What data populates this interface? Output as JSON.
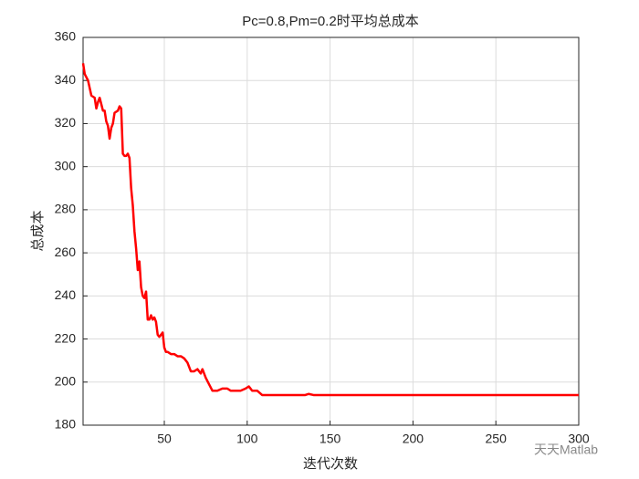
{
  "chart_data": {
    "type": "line",
    "title": "Pc=0.8,Pm=0.2时平均总成本",
    "x_label": "迭代次数",
    "y_label": "总成本",
    "x": [
      1,
      2,
      4,
      6,
      8,
      9,
      10,
      11,
      12,
      13,
      14,
      15,
      16,
      17,
      18,
      19,
      20,
      22,
      23,
      24,
      25,
      26,
      27,
      28,
      29,
      30,
      31,
      32,
      33,
      34,
      35,
      36,
      37,
      38,
      39,
      40,
      41,
      42,
      43,
      44,
      45,
      46,
      47,
      48,
      49,
      50,
      51,
      52,
      54,
      56,
      58,
      60,
      62,
      64,
      66,
      68,
      70,
      72,
      73,
      75,
      77,
      79,
      82,
      85,
      88,
      90,
      93,
      96,
      99,
      101,
      103,
      106,
      109,
      115,
      125,
      135,
      137,
      140,
      150,
      300
    ],
    "series": [
      {
        "name": "平均总成本",
        "color": "#ff0000",
        "values": [
          348,
          343,
          340,
          333,
          332,
          327,
          330,
          332,
          329,
          326,
          326,
          321,
          319,
          313,
          318,
          320,
          325,
          326,
          328,
          327,
          306,
          305,
          305,
          306,
          304,
          290,
          282,
          270,
          262,
          252,
          256,
          244,
          240,
          239,
          242,
          229,
          229,
          231,
          229,
          230,
          228,
          222,
          221,
          222,
          223,
          216,
          214,
          214,
          213,
          213,
          212,
          212,
          211,
          209,
          205,
          205,
          206,
          204,
          206,
          202,
          199,
          196,
          196,
          197,
          197,
          196,
          196,
          196,
          197,
          198,
          196,
          196,
          194,
          194,
          194,
          194,
          194.5,
          194,
          194,
          194
        ]
      }
    ],
    "xlim": [
      1,
      300
    ],
    "ylim": [
      180,
      360
    ],
    "xticks": [
      50,
      100,
      150,
      200,
      250,
      300
    ],
    "yticks": [
      180,
      200,
      220,
      240,
      260,
      280,
      300,
      320,
      340,
      360
    ],
    "grid": true,
    "watermark": "天天Matlab"
  }
}
